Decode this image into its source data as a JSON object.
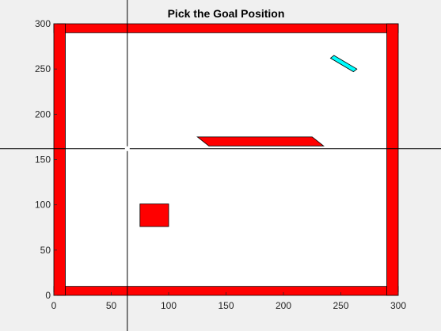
{
  "window": {
    "title": "Pick the Goal Position",
    "background_color": "#f0f0f0",
    "axes_background_color": "#ffffff"
  },
  "chart_data": {
    "type": "scatter",
    "title": "Pick the Goal Position",
    "xlabel": "",
    "ylabel": "",
    "xlim": [
      0,
      300
    ],
    "ylim": [
      0,
      300
    ],
    "x_ticks": [
      0,
      50,
      100,
      150,
      200,
      250,
      300
    ],
    "y_ticks": [
      0,
      50,
      100,
      150,
      200,
      250,
      300
    ],
    "grid": false,
    "crosshair": {
      "x": 64,
      "y": 162,
      "color": "#000000"
    },
    "obstacles": [
      {
        "name": "wall-bottom",
        "color": "#ff0000",
        "polygon": [
          [
            0,
            0
          ],
          [
            300,
            0
          ],
          [
            300,
            10
          ],
          [
            0,
            10
          ]
        ]
      },
      {
        "name": "wall-top",
        "color": "#ff0000",
        "polygon": [
          [
            0,
            290
          ],
          [
            300,
            290
          ],
          [
            300,
            300
          ],
          [
            0,
            300
          ]
        ]
      },
      {
        "name": "wall-left",
        "color": "#ff0000",
        "polygon": [
          [
            0,
            0
          ],
          [
            10,
            0
          ],
          [
            10,
            300
          ],
          [
            0,
            300
          ]
        ]
      },
      {
        "name": "wall-right",
        "color": "#ff0000",
        "polygon": [
          [
            290,
            0
          ],
          [
            300,
            0
          ],
          [
            300,
            300
          ],
          [
            290,
            300
          ]
        ]
      },
      {
        "name": "thin-bar-obstacle",
        "color": "#ff0000",
        "polygon": [
          [
            125,
            175
          ],
          [
            225,
            175
          ],
          [
            235,
            165
          ],
          [
            135,
            165
          ]
        ]
      },
      {
        "name": "square-obstacle",
        "color": "#ff0000",
        "polygon": [
          [
            75,
            76
          ],
          [
            100,
            76
          ],
          [
            100,
            101
          ],
          [
            75,
            101
          ]
        ]
      }
    ],
    "robot": {
      "name": "robot-rectangle",
      "color": "#00ffff",
      "polygon": [
        [
          241,
          262
        ],
        [
          245,
          258
        ],
        [
          262,
          246
        ],
        [
          258,
          250
        ],
        [
          262,
          246
        ],
        [
          265,
          248
        ],
        [
          265,
          250
        ],
        [
          245,
          262
        ]
      ]
    }
  }
}
